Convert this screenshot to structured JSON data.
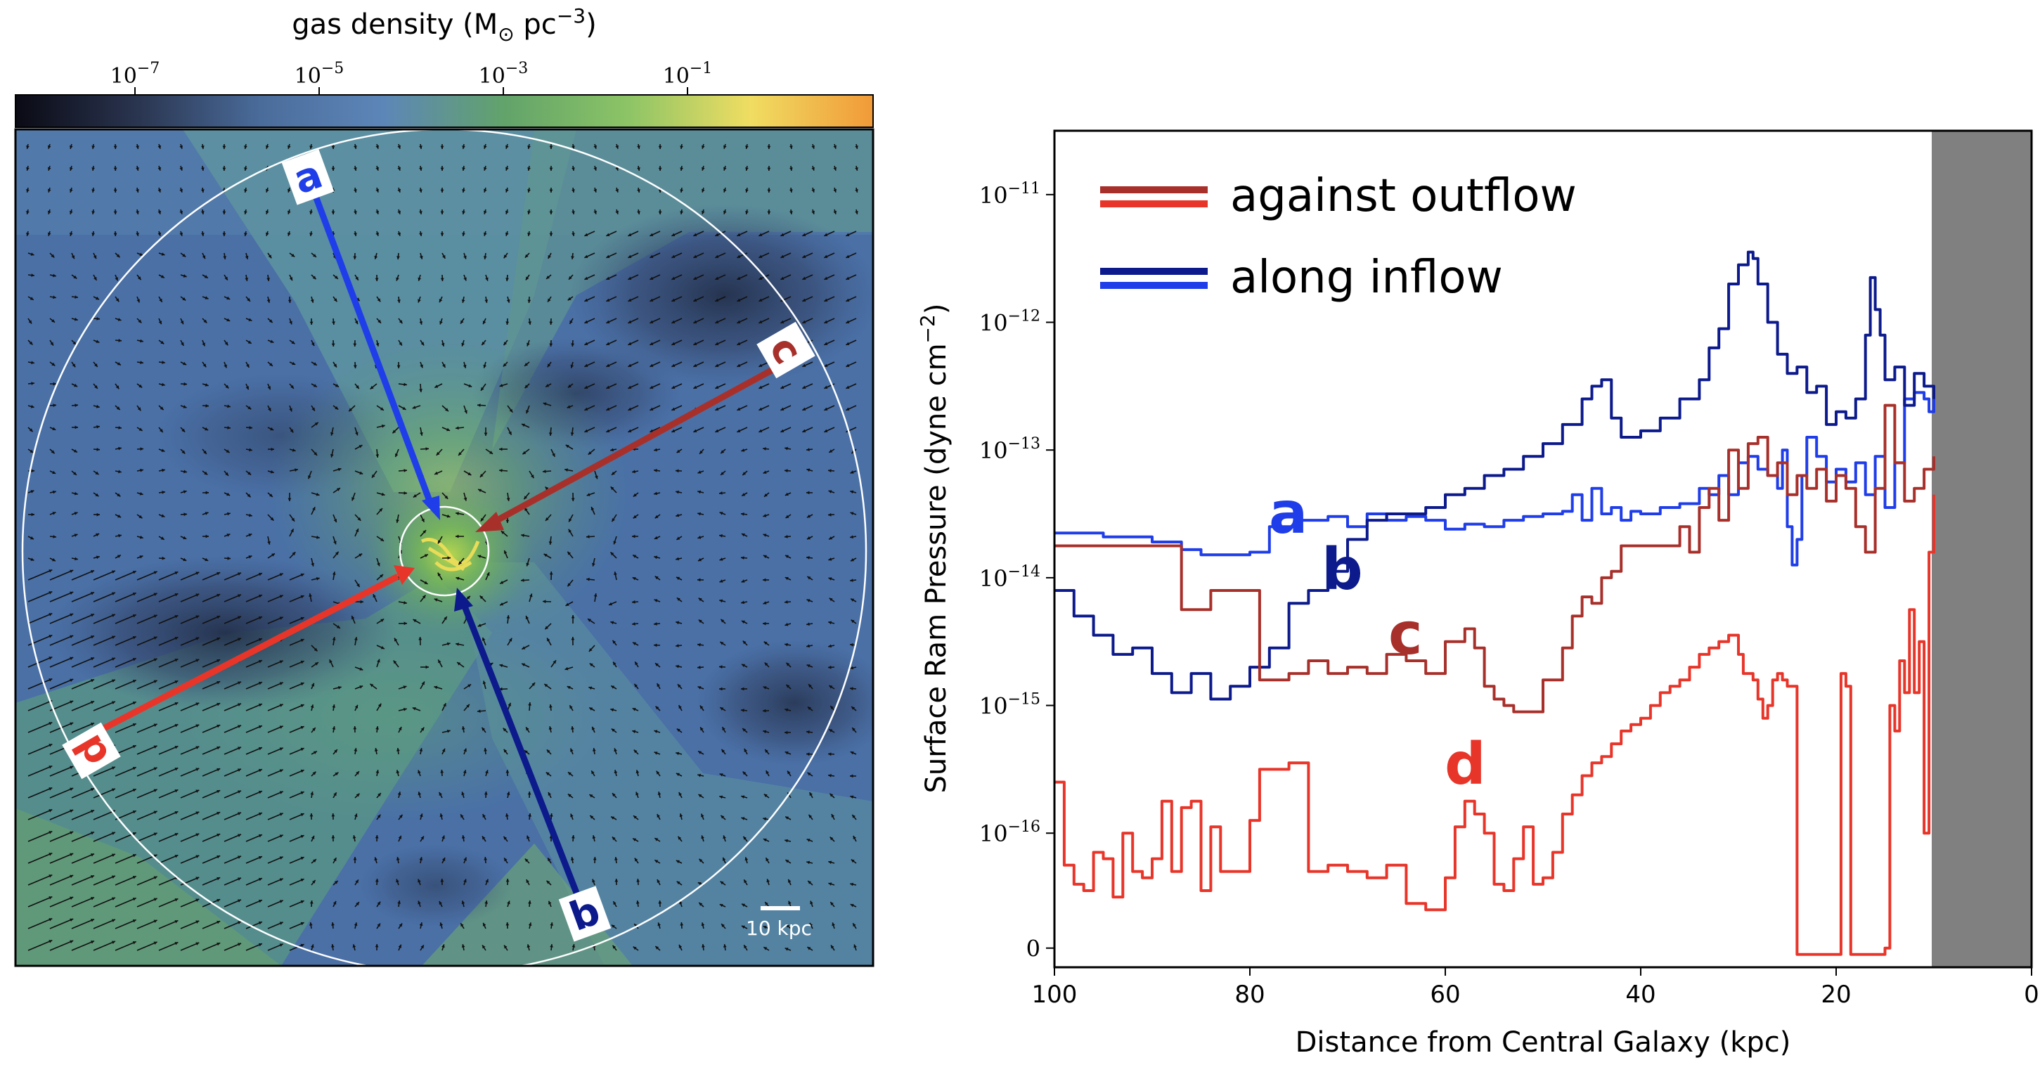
{
  "colorbar": {
    "label_prefix": "gas density (M",
    "label_sun": "⊙",
    "label_unit": " pc",
    "label_exp": "−3",
    "label_close": ")",
    "ticks": [
      {
        "base": "10",
        "exp": "−7"
      },
      {
        "base": "10",
        "exp": "−5"
      },
      {
        "base": "10",
        "exp": "−3"
      },
      {
        "base": "10",
        "exp": "−1"
      }
    ],
    "colors": [
      "#0a0a14",
      "#2a3550",
      "#4a6c9b",
      "#5d86b8",
      "#62a36a",
      "#8cc466",
      "#f0dd62",
      "#f19a38"
    ]
  },
  "map": {
    "scale_label": "10 kpc",
    "sightlines": [
      {
        "id": "a",
        "color": "#1f3de8"
      },
      {
        "id": "b",
        "color": "#0c1a8c"
      },
      {
        "id": "c",
        "color": "#a8302b"
      },
      {
        "id": "d",
        "color": "#e8352a"
      }
    ]
  },
  "chart_data": {
    "type": "line",
    "xlabel": "Distance from Central Galaxy (kpc)",
    "ylabel_main": "Surface Ram Pressure (dyne cm",
    "ylabel_exp": "−2",
    "ylabel_close": ")",
    "xlim": [
      100,
      0
    ],
    "ylim_log": [
      -16.9,
      -10.5
    ],
    "xticks": [
      "100",
      "80",
      "60",
      "40",
      "20",
      "0"
    ],
    "xtick_values": [
      100,
      80,
      60,
      40,
      20,
      0
    ],
    "yticks": [
      {
        "base": "10",
        "exp": "−11",
        "log": -11
      },
      {
        "base": "10",
        "exp": "−12",
        "log": -12
      },
      {
        "base": "10",
        "exp": "−13",
        "log": -13
      },
      {
        "base": "10",
        "exp": "−14",
        "log": -14
      },
      {
        "base": "10",
        "exp": "−15",
        "log": -15
      },
      {
        "base": "10",
        "exp": "−16",
        "log": -16
      },
      {
        "base": "0",
        "exp": "",
        "log": -16.9
      }
    ],
    "shaded_region_kpc": [
      10,
      0
    ],
    "legend": [
      {
        "label": "against outflow",
        "colors": [
          "#a8302b",
          "#e8352a"
        ]
      },
      {
        "label": "along inflow",
        "colors": [
          "#0c1a8c",
          "#1f3de8"
        ]
      }
    ],
    "series": [
      {
        "name": "a",
        "color": "#1f3de8",
        "x": [
          100,
          95,
          90,
          87,
          85,
          80,
          78,
          75,
          72,
          70,
          68,
          66,
          64,
          62,
          60,
          58,
          56,
          54,
          52,
          50,
          48,
          47,
          46,
          45,
          44,
          43,
          42,
          41,
          40,
          38,
          36,
          34,
          33,
          32,
          31,
          30,
          29,
          28,
          27,
          26,
          25.5,
          25,
          24.5,
          24,
          23.5,
          23,
          22,
          21,
          20,
          19,
          18,
          17,
          16,
          15,
          14,
          13,
          12,
          11,
          10.5,
          10
        ],
        "y": [
          -13.65,
          -13.68,
          -13.72,
          -13.78,
          -13.82,
          -13.8,
          -13.6,
          -13.55,
          -13.52,
          -13.6,
          -13.5,
          -13.55,
          -13.52,
          -13.55,
          -13.62,
          -13.58,
          -13.6,
          -13.55,
          -13.52,
          -13.5,
          -13.48,
          -13.35,
          -13.55,
          -13.3,
          -13.5,
          -13.45,
          -13.55,
          -13.48,
          -13.5,
          -13.45,
          -13.42,
          -13.3,
          -13.35,
          -13.2,
          -13.35,
          -13.1,
          -13.05,
          -13.15,
          -13.2,
          -13.3,
          -13.0,
          -13.6,
          -13.9,
          -13.7,
          -13.2,
          -12.9,
          -13.05,
          -13.25,
          -13.15,
          -13.25,
          -13.1,
          -13.35,
          -13.05,
          -13.45,
          -13.1,
          -12.6,
          -12.55,
          -12.6,
          -12.7,
          -12.6
        ]
      },
      {
        "name": "b",
        "color": "#0c1a8c",
        "x": [
          100,
          98,
          96,
          94,
          92,
          90,
          88,
          86,
          84,
          82,
          80,
          78,
          76,
          74,
          72,
          70,
          68,
          66,
          64,
          62,
          60,
          58,
          56,
          54,
          52,
          50,
          48,
          46,
          45,
          44,
          43,
          42,
          40,
          38,
          36,
          34,
          33,
          32,
          31,
          30,
          29,
          28.5,
          28,
          27,
          26,
          25,
          24,
          23,
          22,
          21,
          20,
          19,
          18,
          17,
          16.5,
          16,
          15.5,
          15,
          14,
          13,
          12,
          11,
          10
        ],
        "y": [
          -14.1,
          -14.3,
          -14.45,
          -14.6,
          -14.55,
          -14.75,
          -14.9,
          -14.75,
          -14.95,
          -14.85,
          -14.7,
          -14.55,
          -14.2,
          -14.1,
          -13.95,
          -13.7,
          -13.55,
          -13.5,
          -13.5,
          -13.45,
          -13.35,
          -13.3,
          -13.2,
          -13.15,
          -13.05,
          -12.95,
          -12.8,
          -12.6,
          -12.5,
          -12.45,
          -12.75,
          -12.9,
          -12.85,
          -12.75,
          -12.6,
          -12.45,
          -12.2,
          -12.05,
          -11.7,
          -11.55,
          -11.45,
          -11.5,
          -11.7,
          -12.0,
          -12.25,
          -12.4,
          -12.35,
          -12.55,
          -12.5,
          -12.8,
          -12.7,
          -12.75,
          -12.6,
          -12.1,
          -11.65,
          -11.9,
          -12.1,
          -12.45,
          -12.35,
          -12.65,
          -12.4,
          -12.5,
          -12.6
        ]
      },
      {
        "name": "c",
        "color": "#a8302b",
        "x": [
          100,
          96,
          92,
          88,
          87,
          86,
          84,
          82,
          80,
          79,
          78,
          76,
          74,
          72,
          70,
          68,
          66,
          64,
          62,
          60,
          58,
          57,
          56,
          55,
          54,
          53,
          52,
          50,
          48,
          47,
          46,
          45,
          44,
          43,
          42,
          40,
          38,
          36,
          35,
          34,
          33,
          32,
          31,
          30,
          29,
          28,
          27,
          26,
          25,
          24,
          23,
          22,
          21,
          20,
          19,
          18,
          17,
          16,
          15,
          14,
          13,
          12,
          11,
          10
        ],
        "y": [
          -13.75,
          -13.75,
          -13.75,
          -13.75,
          -14.25,
          -14.25,
          -14.1,
          -14.1,
          -14.1,
          -14.8,
          -14.8,
          -14.75,
          -14.65,
          -14.75,
          -14.7,
          -14.75,
          -14.6,
          -14.65,
          -14.75,
          -14.5,
          -14.4,
          -14.55,
          -14.85,
          -14.95,
          -15.0,
          -15.05,
          -15.05,
          -14.8,
          -14.55,
          -14.3,
          -14.15,
          -14.2,
          -14.0,
          -13.95,
          -13.75,
          -13.75,
          -13.75,
          -13.6,
          -13.8,
          -13.45,
          -13.3,
          -13.55,
          -13.0,
          -13.3,
          -12.95,
          -12.9,
          -13.2,
          -13.1,
          -13.35,
          -13.2,
          -13.3,
          -13.15,
          -13.4,
          -13.2,
          -13.3,
          -13.6,
          -13.8,
          -13.3,
          -12.65,
          -13.1,
          -13.4,
          -13.3,
          -13.15,
          -13.05
        ]
      },
      {
        "name": "d",
        "color": "#e8352a",
        "x": [
          100,
          99,
          98,
          97,
          96,
          95,
          94,
          93,
          92,
          91,
          90,
          89,
          88,
          87,
          86,
          85,
          84,
          83,
          82,
          81,
          80,
          79,
          78,
          77,
          76,
          75,
          74,
          72,
          70,
          68,
          66,
          64,
          62,
          60,
          59,
          58,
          57,
          56,
          55,
          54,
          53,
          52,
          51,
          50,
          49,
          48,
          47,
          46,
          45,
          44,
          43,
          42,
          41,
          40,
          39,
          38,
          37,
          36,
          35,
          34,
          33,
          32,
          31,
          30,
          29.5,
          29,
          28.5,
          28,
          27.5,
          27,
          26.5,
          26,
          25.5,
          25,
          24,
          23,
          22,
          21,
          20,
          19.5,
          19,
          18.5,
          18,
          17,
          16,
          15.5,
          15,
          14.5,
          14,
          13.5,
          13,
          12.5,
          12,
          11.5,
          11,
          10.5,
          10
        ],
        "y": [
          -15.6,
          -16.25,
          -16.4,
          -16.45,
          -16.15,
          -16.2,
          -16.5,
          -16.0,
          -16.3,
          -16.35,
          -16.2,
          -15.75,
          -16.3,
          -15.8,
          -15.75,
          -16.45,
          -15.95,
          -16.3,
          -16.3,
          -16.3,
          -15.9,
          -15.5,
          -15.5,
          -15.5,
          -15.45,
          -15.45,
          -16.3,
          -16.25,
          -16.3,
          -16.35,
          -16.25,
          -16.55,
          -16.6,
          -16.35,
          -15.95,
          -15.75,
          -15.85,
          -16.0,
          -16.4,
          -16.45,
          -16.2,
          -15.95,
          -16.4,
          -16.35,
          -16.15,
          -15.85,
          -15.7,
          -15.55,
          -15.45,
          -15.4,
          -15.3,
          -15.2,
          -15.15,
          -15.1,
          -15.0,
          -14.9,
          -14.85,
          -14.8,
          -14.7,
          -14.6,
          -14.55,
          -14.5,
          -14.45,
          -14.6,
          -14.75,
          -14.75,
          -14.8,
          -14.95,
          -15.1,
          -15.0,
          -14.8,
          -14.75,
          -14.8,
          -14.85,
          -16.95,
          -16.95,
          -16.95,
          -16.95,
          -16.95,
          -14.75,
          -14.85,
          -16.95,
          -16.95,
          -16.95,
          -16.95,
          -16.95,
          -16.9,
          -15.0,
          -15.2,
          -14.65,
          -14.9,
          -14.25,
          -14.9,
          -14.5,
          -16.0,
          -13.8,
          -13.35
        ]
      }
    ],
    "series_labels": [
      {
        "id": "a",
        "text": "a",
        "color": "#1f3de8"
      },
      {
        "id": "b",
        "text": "b",
        "color": "#0c1a8c"
      },
      {
        "id": "c",
        "text": "c",
        "color": "#a8302b"
      },
      {
        "id": "d",
        "text": "d",
        "color": "#e8352a"
      }
    ]
  }
}
